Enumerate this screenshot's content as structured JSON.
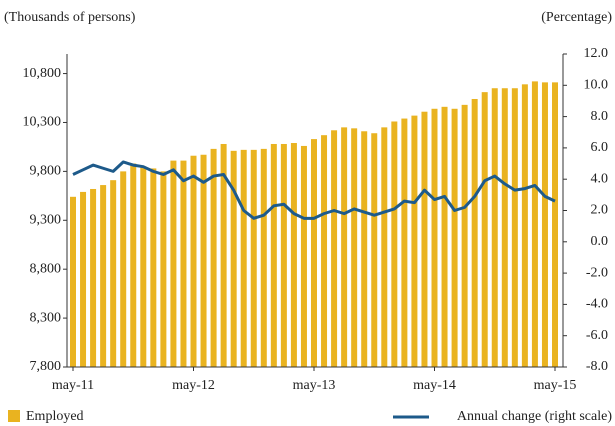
{
  "chart_data": {
    "type": "bar-line",
    "y_label": "(Thousands of persons)",
    "y2_label": "(Percentage)",
    "categories": [
      "may-11",
      null,
      null,
      null,
      null,
      null,
      null,
      null,
      null,
      null,
      null,
      null,
      "may-12",
      null,
      null,
      null,
      null,
      null,
      null,
      null,
      null,
      null,
      null,
      null,
      "may-13",
      null,
      null,
      null,
      null,
      null,
      null,
      null,
      null,
      null,
      null,
      null,
      "may-14",
      null,
      null,
      null,
      null,
      null,
      null,
      null,
      null,
      null,
      null,
      null,
      "may-15"
    ],
    "series": [
      {
        "name": "Employed",
        "type": "bar",
        "color": "#e9b320",
        "values": [
          9540,
          9590,
          9620,
          9660,
          9710,
          9800,
          9880,
          9850,
          9830,
          9800,
          9910,
          9910,
          9960,
          9970,
          10030,
          10080,
          10010,
          10020,
          10020,
          10030,
          10080,
          10080,
          10090,
          10060,
          10130,
          10170,
          10220,
          10250,
          10240,
          10210,
          10190,
          10250,
          10310,
          10340,
          10370,
          10410,
          10440,
          10460,
          10440,
          10480,
          10540,
          10610,
          10650,
          10650,
          10650,
          10690,
          10720,
          10710,
          10710
        ]
      },
      {
        "name": "Annual change (right scale)",
        "type": "line",
        "axis": "y2",
        "color": "#1d5a8a",
        "values": [
          4.3,
          4.6,
          4.9,
          4.7,
          4.5,
          5.1,
          4.9,
          4.8,
          4.5,
          4.3,
          4.6,
          3.9,
          4.2,
          3.8,
          4.2,
          4.3,
          3.3,
          2.0,
          1.5,
          1.7,
          2.3,
          2.4,
          1.8,
          1.5,
          1.5,
          1.8,
          2.0,
          1.8,
          2.1,
          1.9,
          1.7,
          1.9,
          2.1,
          2.6,
          2.5,
          3.3,
          2.7,
          2.9,
          2.0,
          2.2,
          2.9,
          3.9,
          4.2,
          3.7,
          3.3,
          3.4,
          3.6,
          2.9,
          2.6
        ]
      }
    ],
    "ylim": [
      7800,
      11000
    ],
    "yticks": [
      {
        "value": 7800,
        "label": "7,800"
      },
      {
        "value": 8300,
        "label": "8,300"
      },
      {
        "value": 8800,
        "label": "8,800"
      },
      {
        "value": 9300,
        "label": "9,300"
      },
      {
        "value": 9800,
        "label": "9,800"
      },
      {
        "value": 10300,
        "label": "10,300"
      },
      {
        "value": 10800,
        "label": "10,800"
      }
    ],
    "y2lim": [
      -8,
      12
    ],
    "y2ticks": [
      {
        "value": -8,
        "label": "-8.0"
      },
      {
        "value": -6,
        "label": "-6.0"
      },
      {
        "value": -4,
        "label": "-4.0"
      },
      {
        "value": -2,
        "label": "-2.0"
      },
      {
        "value": 0,
        "label": "0.0"
      },
      {
        "value": 2,
        "label": "2.0"
      },
      {
        "value": 4,
        "label": "4.0"
      },
      {
        "value": 6,
        "label": "6.0"
      },
      {
        "value": 8,
        "label": "8.0"
      },
      {
        "value": 10,
        "label": "10.0"
      },
      {
        "value": 12,
        "label": "12.0"
      }
    ]
  }
}
